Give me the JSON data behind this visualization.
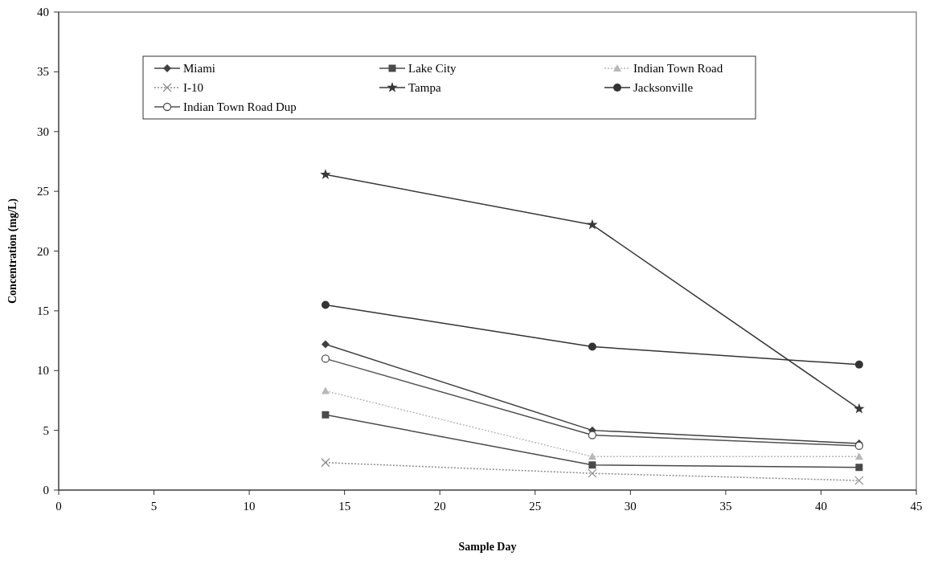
{
  "chart_data": {
    "type": "line",
    "xlabel": "Sample Day",
    "ylabel": "Concentration (mg/L)",
    "x": [
      14,
      28,
      42
    ],
    "xlim": [
      0,
      45
    ],
    "xticks": [
      0,
      5,
      10,
      15,
      20,
      25,
      30,
      35,
      40,
      45
    ],
    "ylim": [
      0,
      40
    ],
    "yticks": [
      0,
      5,
      10,
      15,
      20,
      25,
      30,
      35,
      40
    ],
    "legend": "top",
    "grid": false,
    "series": [
      {
        "name": "Miami",
        "color": "#404040",
        "marker": "diamond",
        "line_style": "solid",
        "values": [
          12.2,
          5.0,
          3.9
        ]
      },
      {
        "name": "Lake City",
        "color": "#4a4a4a",
        "marker": "square",
        "line_style": "solid",
        "values": [
          6.3,
          2.1,
          1.9
        ]
      },
      {
        "name": "Indian Town Road",
        "color": "#b8b8b8",
        "marker": "triangle",
        "line_style": "dotted",
        "values": [
          8.3,
          2.8,
          2.8
        ]
      },
      {
        "name": "I-10",
        "color": "#8a8a8a",
        "marker": "cross",
        "line_style": "dotted",
        "values": [
          2.3,
          1.4,
          0.8
        ]
      },
      {
        "name": "Tampa",
        "color": "#383838",
        "marker": "star",
        "line_style": "solid",
        "values": [
          26.4,
          22.2,
          6.8
        ]
      },
      {
        "name": "Jacksonville",
        "color": "#333333",
        "marker": "circle",
        "line_style": "solid",
        "values": [
          15.5,
          12.0,
          10.5
        ]
      },
      {
        "name": "Indian Town Road Dup",
        "color": "#505050",
        "marker": "open-circle",
        "line_style": "solid",
        "values": [
          11.0,
          4.6,
          3.7
        ]
      }
    ]
  }
}
